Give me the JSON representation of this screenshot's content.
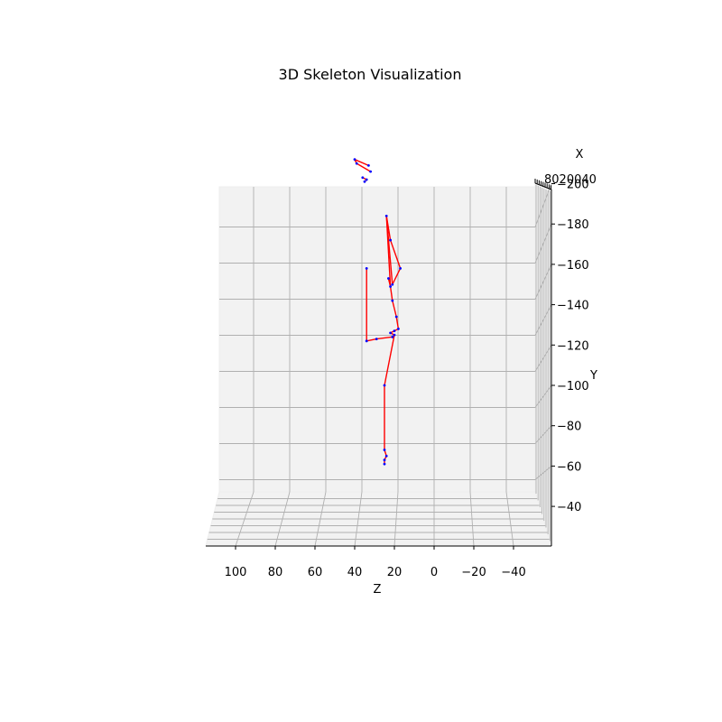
{
  "chart_data": {
    "type": "scatter",
    "title": "3D Skeleton Visualization",
    "xlabel": "X",
    "ylabel": "Y",
    "zlabel": "Z",
    "z_ticks": [
      100,
      80,
      60,
      40,
      20,
      0,
      -20,
      -40
    ],
    "y_ticks": [
      200,
      180,
      160,
      140,
      120,
      100,
      80,
      60,
      40
    ],
    "x_ticks_overlap": "8020040",
    "z_range": [
      115,
      -55
    ],
    "y_range": [
      35,
      218
    ],
    "grid": true,
    "colors": {
      "bones": "#ff0000",
      "joints": "#0000ff"
    },
    "joints": [
      {
        "z": 40,
        "y": 212
      },
      {
        "z": 39,
        "y": 210
      },
      {
        "z": 33,
        "y": 209
      },
      {
        "z": 32,
        "y": 206
      },
      {
        "z": 36,
        "y": 203
      },
      {
        "z": 34,
        "y": 202
      },
      {
        "z": 35,
        "y": 201
      },
      {
        "z": 24,
        "y": 184
      },
      {
        "z": 22,
        "y": 172
      },
      {
        "z": 17,
        "y": 158
      },
      {
        "z": 21,
        "y": 150
      },
      {
        "z": 23,
        "y": 153
      },
      {
        "z": 22,
        "y": 149
      },
      {
        "z": 34,
        "y": 158
      },
      {
        "z": 21,
        "y": 142
      },
      {
        "z": 19,
        "y": 134
      },
      {
        "z": 18,
        "y": 128
      },
      {
        "z": 20,
        "y": 127
      },
      {
        "z": 22,
        "y": 126
      },
      {
        "z": 20,
        "y": 125
      },
      {
        "z": 21,
        "y": 124
      },
      {
        "z": 29,
        "y": 123
      },
      {
        "z": 34,
        "y": 122
      },
      {
        "z": 25,
        "y": 100
      },
      {
        "z": 25,
        "y": 68
      },
      {
        "z": 24,
        "y": 65
      },
      {
        "z": 25,
        "y": 63
      },
      {
        "z": 25,
        "y": 61
      }
    ],
    "bones": [
      [
        0,
        2
      ],
      [
        1,
        3
      ],
      [
        0,
        1
      ],
      [
        4,
        5
      ],
      [
        5,
        6
      ],
      [
        7,
        8
      ],
      [
        8,
        9
      ],
      [
        9,
        10
      ],
      [
        7,
        10
      ],
      [
        7,
        12
      ],
      [
        11,
        12
      ],
      [
        12,
        14
      ],
      [
        14,
        15
      ],
      [
        15,
        16
      ],
      [
        16,
        17
      ],
      [
        17,
        18
      ],
      [
        18,
        19
      ],
      [
        19,
        20
      ],
      [
        20,
        21
      ],
      [
        21,
        22
      ],
      [
        22,
        13
      ],
      [
        19,
        23
      ],
      [
        23,
        24
      ],
      [
        24,
        25
      ],
      [
        25,
        26
      ],
      [
        26,
        27
      ]
    ]
  }
}
